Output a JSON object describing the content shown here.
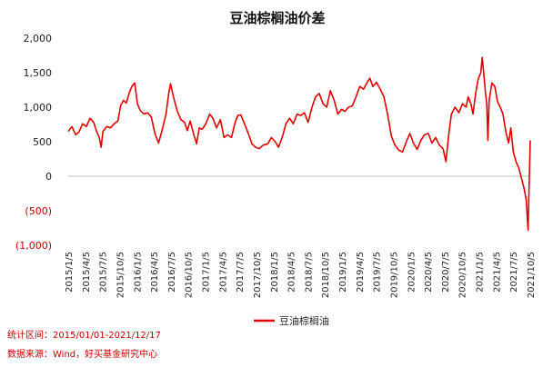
{
  "chart_data": {
    "type": "line",
    "title": "豆油棕榈油价差",
    "xlabel": "",
    "ylabel": "",
    "ylim": [
      -1000,
      2000
    ],
    "yticks": [
      {
        "value": 2000,
        "label": "2,000"
      },
      {
        "value": 1500,
        "label": "1,500"
      },
      {
        "value": 1000,
        "label": "1,000"
      },
      {
        "value": 500,
        "label": "500"
      },
      {
        "value": 0,
        "label": "0"
      },
      {
        "value": -500,
        "label": "(500)"
      },
      {
        "value": -1000,
        "label": "(1,000)"
      }
    ],
    "xticks": [
      "2015/1/5",
      "2015/4/5",
      "2015/7/5",
      "2015/10/5",
      "2016/1/5",
      "2016/4/5",
      "2016/7/5",
      "2016/10/5",
      "2017/1/5",
      "2017/4/5",
      "2017/7/5",
      "2017/10/5",
      "2018/1/5",
      "2018/4/5",
      "2018/7/5",
      "2018/10/5",
      "2019/1/5",
      "2019/4/5",
      "2019/7/5",
      "2019/10/5",
      "2020/1/5",
      "2020/4/5",
      "2020/7/5",
      "2020/10/5",
      "2021/1/5",
      "2021/4/5",
      "2021/7/5",
      "2021/10/5"
    ],
    "grid": false,
    "legend_position": "bottom",
    "series": [
      {
        "name": "豆油棕榈油",
        "color": "#e00000",
        "points": [
          [
            "2015-01-05",
            650
          ],
          [
            "2015-01-25",
            720
          ],
          [
            "2015-02-15",
            600
          ],
          [
            "2015-03-05",
            640
          ],
          [
            "2015-03-25",
            760
          ],
          [
            "2015-04-15",
            720
          ],
          [
            "2015-05-05",
            840
          ],
          [
            "2015-05-25",
            780
          ],
          [
            "2015-06-10",
            650
          ],
          [
            "2015-06-25",
            560
          ],
          [
            "2015-07-05",
            420
          ],
          [
            "2015-07-15",
            650
          ],
          [
            "2015-08-05",
            720
          ],
          [
            "2015-08-25",
            700
          ],
          [
            "2015-09-15",
            760
          ],
          [
            "2015-10-05",
            800
          ],
          [
            "2015-10-20",
            1020
          ],
          [
            "2015-11-05",
            1100
          ],
          [
            "2015-11-20",
            1060
          ],
          [
            "2015-12-05",
            1200
          ],
          [
            "2015-12-20",
            1300
          ],
          [
            "2016-01-05",
            1350
          ],
          [
            "2016-01-20",
            1050
          ],
          [
            "2016-02-05",
            950
          ],
          [
            "2016-02-25",
            900
          ],
          [
            "2016-03-15",
            920
          ],
          [
            "2016-04-05",
            860
          ],
          [
            "2016-04-25",
            620
          ],
          [
            "2016-05-15",
            480
          ],
          [
            "2016-06-05",
            680
          ],
          [
            "2016-06-25",
            900
          ],
          [
            "2016-07-10",
            1200
          ],
          [
            "2016-07-20",
            1340
          ],
          [
            "2016-08-05",
            1150
          ],
          [
            "2016-08-25",
            950
          ],
          [
            "2016-09-15",
            820
          ],
          [
            "2016-10-05",
            780
          ],
          [
            "2016-10-20",
            660
          ],
          [
            "2016-11-05",
            800
          ],
          [
            "2016-11-25",
            600
          ],
          [
            "2016-12-10",
            470
          ],
          [
            "2016-12-25",
            700
          ],
          [
            "2017-01-10",
            680
          ],
          [
            "2017-01-30",
            760
          ],
          [
            "2017-02-20",
            900
          ],
          [
            "2017-03-10",
            840
          ],
          [
            "2017-03-30",
            700
          ],
          [
            "2017-04-20",
            820
          ],
          [
            "2017-05-10",
            560
          ],
          [
            "2017-05-30",
            600
          ],
          [
            "2017-06-20",
            560
          ],
          [
            "2017-07-10",
            780
          ],
          [
            "2017-07-25",
            880
          ],
          [
            "2017-08-10",
            890
          ],
          [
            "2017-08-30",
            760
          ],
          [
            "2017-09-20",
            620
          ],
          [
            "2017-10-10",
            470
          ],
          [
            "2017-10-30",
            420
          ],
          [
            "2017-11-20",
            400
          ],
          [
            "2017-12-10",
            450
          ],
          [
            "2018-01-05",
            470
          ],
          [
            "2018-01-25",
            560
          ],
          [
            "2018-02-15",
            500
          ],
          [
            "2018-03-05",
            420
          ],
          [
            "2018-03-25",
            560
          ],
          [
            "2018-04-15",
            760
          ],
          [
            "2018-05-05",
            840
          ],
          [
            "2018-05-25",
            760
          ],
          [
            "2018-06-15",
            900
          ],
          [
            "2018-07-05",
            880
          ],
          [
            "2018-07-25",
            920
          ],
          [
            "2018-08-15",
            780
          ],
          [
            "2018-09-05",
            1000
          ],
          [
            "2018-09-25",
            1150
          ],
          [
            "2018-10-15",
            1200
          ],
          [
            "2018-11-05",
            1050
          ],
          [
            "2018-11-25",
            1000
          ],
          [
            "2018-12-15",
            1240
          ],
          [
            "2019-01-05",
            1100
          ],
          [
            "2019-01-25",
            900
          ],
          [
            "2019-02-15",
            970
          ],
          [
            "2019-03-05",
            940
          ],
          [
            "2019-03-25",
            1000
          ],
          [
            "2019-04-15",
            1020
          ],
          [
            "2019-05-05",
            1150
          ],
          [
            "2019-05-25",
            1300
          ],
          [
            "2019-06-15",
            1260
          ],
          [
            "2019-07-05",
            1360
          ],
          [
            "2019-07-20",
            1420
          ],
          [
            "2019-08-05",
            1300
          ],
          [
            "2019-08-25",
            1360
          ],
          [
            "2019-09-15",
            1260
          ],
          [
            "2019-10-05",
            1150
          ],
          [
            "2019-10-25",
            900
          ],
          [
            "2019-11-15",
            580
          ],
          [
            "2019-12-05",
            450
          ],
          [
            "2019-12-25",
            380
          ],
          [
            "2020-01-15",
            350
          ],
          [
            "2020-02-05",
            500
          ],
          [
            "2020-02-25",
            620
          ],
          [
            "2020-03-15",
            480
          ],
          [
            "2020-04-05",
            390
          ],
          [
            "2020-04-25",
            520
          ],
          [
            "2020-05-15",
            600
          ],
          [
            "2020-06-05",
            620
          ],
          [
            "2020-06-25",
            480
          ],
          [
            "2020-07-15",
            560
          ],
          [
            "2020-08-05",
            450
          ],
          [
            "2020-08-25",
            400
          ],
          [
            "2020-09-10",
            210
          ],
          [
            "2020-09-25",
            600
          ],
          [
            "2020-10-10",
            900
          ],
          [
            "2020-10-30",
            1000
          ],
          [
            "2020-11-20",
            920
          ],
          [
            "2020-12-10",
            1050
          ],
          [
            "2020-12-30",
            1000
          ],
          [
            "2021-01-10",
            1150
          ],
          [
            "2021-01-25",
            1050
          ],
          [
            "2021-02-05",
            900
          ],
          [
            "2021-02-20",
            1200
          ],
          [
            "2021-03-05",
            1400
          ],
          [
            "2021-03-20",
            1500
          ],
          [
            "2021-03-28",
            1720
          ],
          [
            "2021-04-05",
            1500
          ],
          [
            "2021-04-15",
            1200
          ],
          [
            "2021-04-22",
            1050
          ],
          [
            "2021-04-28",
            520
          ],
          [
            "2021-05-05",
            1100
          ],
          [
            "2021-05-20",
            1350
          ],
          [
            "2021-06-05",
            1300
          ],
          [
            "2021-06-20",
            1080
          ],
          [
            "2021-07-05",
            1000
          ],
          [
            "2021-07-20",
            900
          ],
          [
            "2021-08-05",
            640
          ],
          [
            "2021-08-20",
            480
          ],
          [
            "2021-09-01",
            700
          ],
          [
            "2021-09-15",
            350
          ],
          [
            "2021-10-01",
            200
          ],
          [
            "2021-10-15",
            120
          ],
          [
            "2021-11-01",
            -50
          ],
          [
            "2021-11-15",
            -200
          ],
          [
            "2021-11-25",
            -350
          ],
          [
            "2021-12-05",
            -780
          ],
          [
            "2021-12-10",
            -200
          ],
          [
            "2021-12-17",
            520
          ]
        ]
      }
    ]
  },
  "notes": {
    "range": "统计区间：2015/01/01-2021/12/17",
    "source": "数据来源：Wind，好买基金研究中心"
  }
}
